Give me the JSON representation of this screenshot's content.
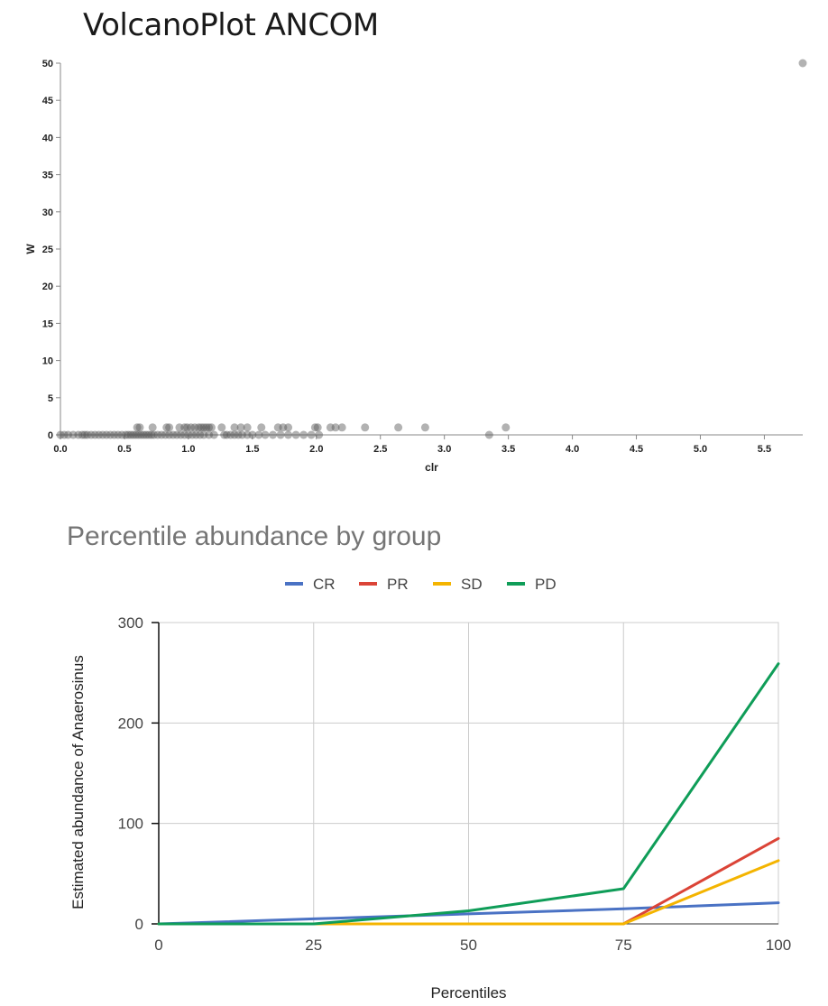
{
  "chart_data": [
    {
      "type": "scatter",
      "title": "VolcanoPlot ANCOM",
      "xlabel": "clr",
      "ylabel": "W",
      "xlim": [
        0,
        5.8
      ],
      "ylim": [
        0,
        50
      ],
      "xticks": [
        "0.0",
        "0.5",
        "1.0",
        "1.5",
        "2.0",
        "2.5",
        "3.0",
        "3.5",
        "4.0",
        "4.5",
        "5.0",
        "5.5"
      ],
      "yticks": [
        "0",
        "5",
        "10",
        "15",
        "20",
        "25",
        "30",
        "35",
        "40",
        "45",
        "50"
      ],
      "point_color": "#555555",
      "points": [
        [
          0.0,
          0
        ],
        [
          0.03,
          0
        ],
        [
          0.06,
          0
        ],
        [
          0.1,
          0
        ],
        [
          0.14,
          0
        ],
        [
          0.17,
          0
        ],
        [
          0.19,
          0
        ],
        [
          0.21,
          0
        ],
        [
          0.24,
          0
        ],
        [
          0.27,
          0
        ],
        [
          0.3,
          0
        ],
        [
          0.33,
          0
        ],
        [
          0.36,
          0
        ],
        [
          0.39,
          0
        ],
        [
          0.42,
          0
        ],
        [
          0.45,
          0
        ],
        [
          0.48,
          0
        ],
        [
          0.51,
          0
        ],
        [
          0.53,
          0
        ],
        [
          0.55,
          0
        ],
        [
          0.57,
          0
        ],
        [
          0.59,
          0
        ],
        [
          0.61,
          0
        ],
        [
          0.63,
          0
        ],
        [
          0.65,
          0
        ],
        [
          0.67,
          0
        ],
        [
          0.69,
          0
        ],
        [
          0.71,
          0
        ],
        [
          0.73,
          0
        ],
        [
          0.76,
          0
        ],
        [
          0.79,
          0
        ],
        [
          0.82,
          0
        ],
        [
          0.85,
          0
        ],
        [
          0.88,
          0
        ],
        [
          0.91,
          0
        ],
        [
          0.94,
          0
        ],
        [
          0.97,
          0
        ],
        [
          1.0,
          0
        ],
        [
          1.03,
          0
        ],
        [
          1.06,
          0
        ],
        [
          1.09,
          0
        ],
        [
          1.12,
          0
        ],
        [
          1.16,
          0
        ],
        [
          1.2,
          0
        ],
        [
          1.28,
          0
        ],
        [
          1.3,
          0
        ],
        [
          1.33,
          0
        ],
        [
          1.36,
          0
        ],
        [
          1.39,
          0
        ],
        [
          1.42,
          0
        ],
        [
          1.46,
          0
        ],
        [
          1.5,
          0
        ],
        [
          1.55,
          0
        ],
        [
          1.6,
          0
        ],
        [
          1.66,
          0
        ],
        [
          1.72,
          0
        ],
        [
          1.78,
          0
        ],
        [
          1.84,
          0
        ],
        [
          1.9,
          0
        ],
        [
          1.96,
          0
        ],
        [
          2.02,
          0
        ],
        [
          3.35,
          0
        ],
        [
          0.6,
          1
        ],
        [
          0.62,
          1
        ],
        [
          0.72,
          1
        ],
        [
          0.83,
          1
        ],
        [
          0.85,
          1
        ],
        [
          0.93,
          1
        ],
        [
          0.97,
          1
        ],
        [
          0.99,
          1
        ],
        [
          1.02,
          1
        ],
        [
          1.05,
          1
        ],
        [
          1.08,
          1
        ],
        [
          1.1,
          1
        ],
        [
          1.12,
          1
        ],
        [
          1.14,
          1
        ],
        [
          1.16,
          1
        ],
        [
          1.18,
          1
        ],
        [
          1.26,
          1
        ],
        [
          1.36,
          1
        ],
        [
          1.41,
          1
        ],
        [
          1.46,
          1
        ],
        [
          1.57,
          1
        ],
        [
          1.7,
          1
        ],
        [
          1.74,
          1
        ],
        [
          1.78,
          1
        ],
        [
          1.99,
          1
        ],
        [
          2.01,
          1
        ],
        [
          2.11,
          1
        ],
        [
          2.15,
          1
        ],
        [
          2.2,
          1
        ],
        [
          2.38,
          1
        ],
        [
          2.64,
          1
        ],
        [
          2.85,
          1
        ],
        [
          3.48,
          1
        ],
        [
          5.8,
          50
        ]
      ]
    },
    {
      "type": "line",
      "title": "Percentile abundance by group",
      "xlabel": "Percentiles",
      "ylabel": "Estimated abundance of Anaerosinus",
      "x": [
        0,
        25,
        50,
        75,
        100
      ],
      "xticks": [
        "0",
        "25",
        "50",
        "75",
        "100"
      ],
      "yticks": [
        "0",
        "100",
        "200",
        "300"
      ],
      "xlim": [
        0,
        100
      ],
      "ylim": [
        0,
        300
      ],
      "series": [
        {
          "name": "CR",
          "color": "#4a72c4",
          "values": [
            0,
            5,
            10,
            15,
            21
          ]
        },
        {
          "name": "PR",
          "color": "#db4437",
          "values": [
            0,
            0,
            0,
            0,
            85
          ]
        },
        {
          "name": "SD",
          "color": "#f4b400",
          "values": [
            0,
            0,
            0,
            0,
            63
          ]
        },
        {
          "name": "PD",
          "color": "#0f9d58",
          "values": [
            0,
            0,
            13,
            35,
            259
          ]
        }
      ]
    }
  ]
}
